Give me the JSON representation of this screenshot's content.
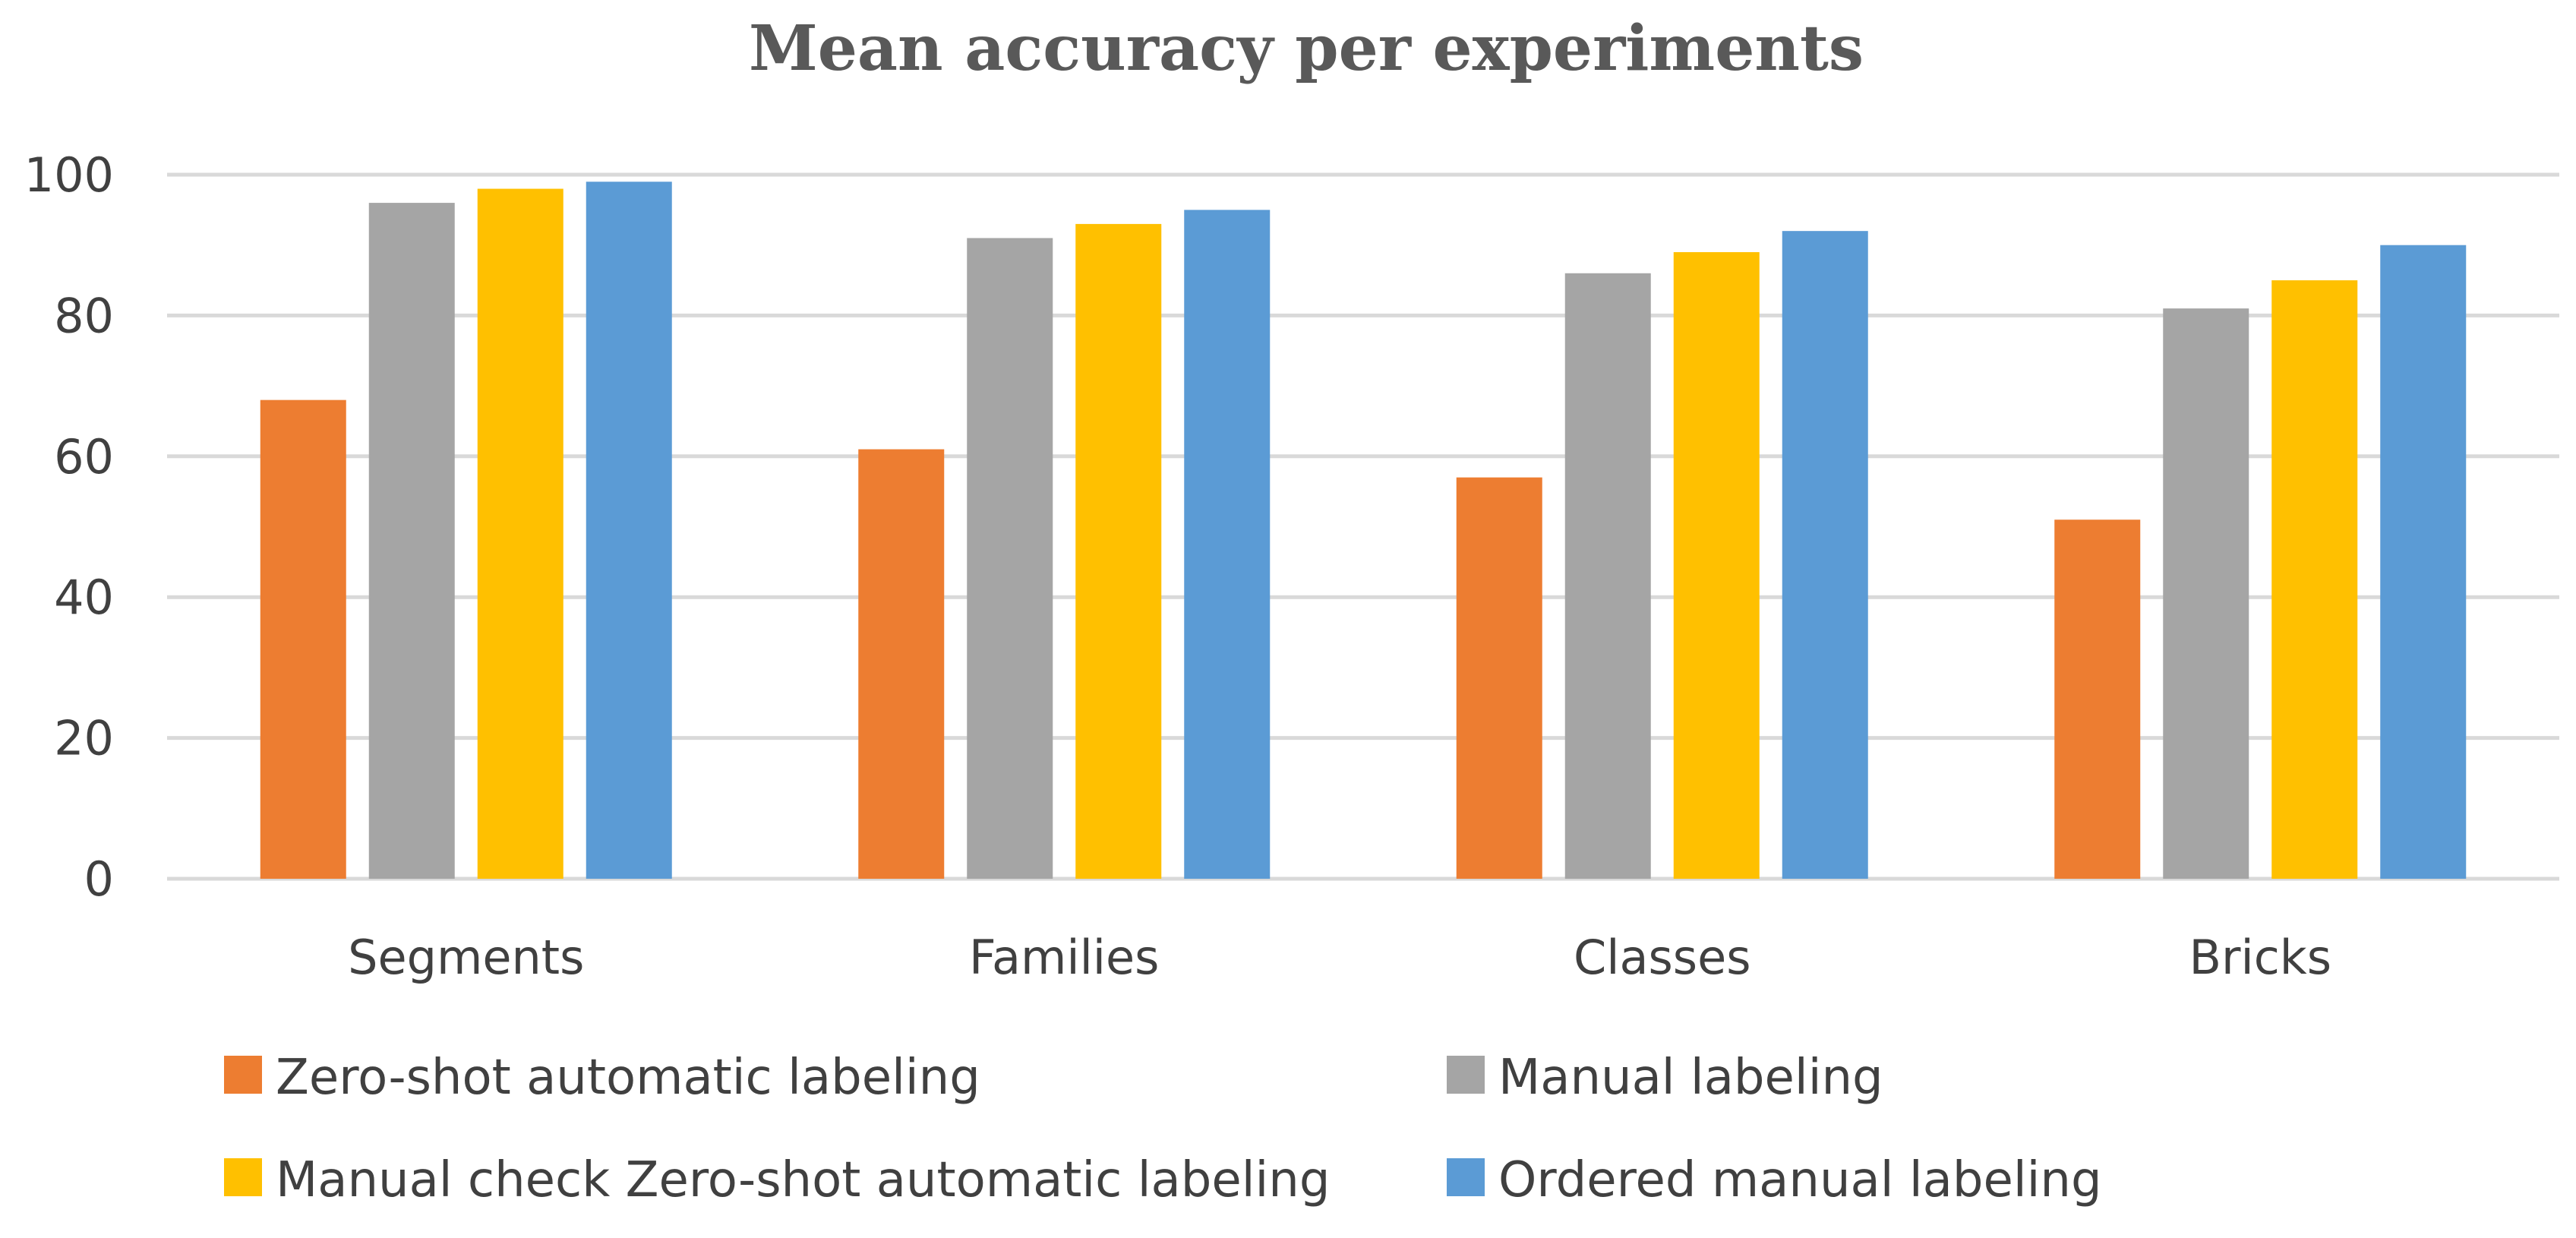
{
  "chart_data": {
    "type": "bar",
    "title": "Mean accuracy per experiments",
    "xlabel": "",
    "ylabel": "",
    "ylim": [
      0,
      100
    ],
    "yticks": [
      0,
      20,
      40,
      60,
      80,
      100
    ],
    "grid": true,
    "legend_position": "bottom",
    "categories": [
      "Segments",
      "Families",
      "Classes",
      "Bricks"
    ],
    "series": [
      {
        "name": "Zero-shot automatic labeling",
        "color": "#ED7D31",
        "values": [
          68,
          61,
          57,
          51
        ]
      },
      {
        "name": "Manual labeling",
        "color": "#A5A5A5",
        "values": [
          96,
          91,
          86,
          81
        ]
      },
      {
        "name": "Manual check Zero-shot automatic labeling",
        "color": "#FFC000",
        "values": [
          98,
          93,
          89,
          85
        ]
      },
      {
        "name": "Ordered manual labeling",
        "color": "#5B9BD5",
        "values": [
          99,
          95,
          92,
          90
        ]
      }
    ]
  }
}
